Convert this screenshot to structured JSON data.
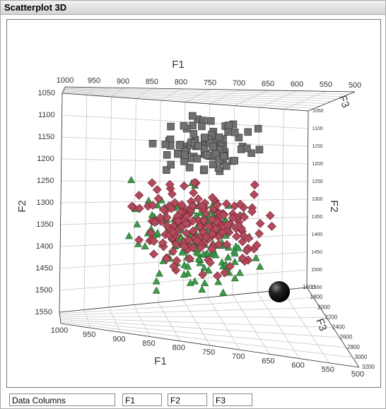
{
  "title": "Scatterplot 3D",
  "plot": {
    "axis_titles": {
      "top": "F1",
      "bottom": "F1",
      "left": "F2",
      "right": "F2",
      "depth_top": "F3",
      "depth_bottom": "F3"
    },
    "f1_ticks": [
      1000,
      950,
      900,
      850,
      800,
      750,
      700,
      650,
      600,
      550,
      500
    ],
    "f2_ticks": [
      1050,
      1100,
      1150,
      1200,
      1250,
      1300,
      1350,
      1400,
      1450,
      1500,
      1550
    ],
    "f3_ticks": [
      1600,
      1800,
      2000,
      2200,
      2400,
      2600,
      2800,
      3000,
      3200
    ]
  },
  "fields": [
    "Data Columns",
    "F1",
    "F2",
    "F3"
  ]
}
